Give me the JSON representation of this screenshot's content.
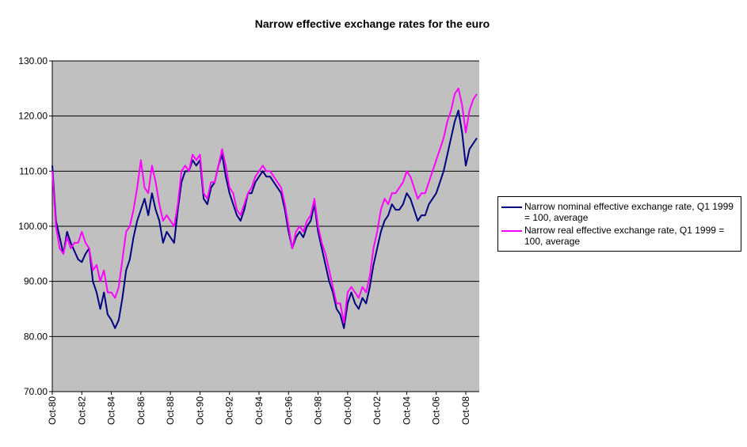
{
  "chart_data": {
    "type": "line",
    "title": "Narrow effective exchange rates for the euro",
    "categories": [
      "Oct-80",
      null,
      null,
      null,
      null,
      null,
      null,
      null,
      "Oct-82",
      null,
      null,
      null,
      null,
      null,
      null,
      null,
      "Oct-84",
      null,
      null,
      null,
      null,
      null,
      null,
      null,
      "Oct-86",
      null,
      null,
      null,
      null,
      null,
      null,
      null,
      "Oct-88",
      null,
      null,
      null,
      null,
      null,
      null,
      null,
      "Oct-90",
      null,
      null,
      null,
      null,
      null,
      null,
      null,
      "Oct-92",
      null,
      null,
      null,
      null,
      null,
      null,
      null,
      "Oct-94",
      null,
      null,
      null,
      null,
      null,
      null,
      null,
      "Oct-96",
      null,
      null,
      null,
      null,
      null,
      null,
      null,
      "Oct-98",
      null,
      null,
      null,
      null,
      null,
      null,
      null,
      "Oct-00",
      null,
      null,
      null,
      null,
      null,
      null,
      null,
      "Oct-02",
      null,
      null,
      null,
      null,
      null,
      null,
      null,
      "Oct-04",
      null,
      null,
      null,
      null,
      null,
      null,
      null,
      "Oct-06",
      null,
      null,
      null,
      null,
      null,
      null,
      null,
      "Oct-08",
      null,
      null,
      null
    ],
    "series": [
      {
        "name": "Narrow nominal effective exchange rate, Q1 1999 = 100, average",
        "color": "#000080",
        "values": [
          111,
          101,
          98,
          95,
          99,
          97,
          95.5,
          94,
          93.5,
          95,
          96,
          90,
          88,
          85,
          88,
          84,
          83,
          81.5,
          83,
          87,
          92,
          94,
          98,
          101,
          103,
          105,
          102,
          106,
          103,
          101,
          97,
          99,
          98,
          97,
          103,
          108,
          110,
          110,
          112,
          111,
          112,
          105,
          104,
          107,
          108,
          111,
          113,
          109,
          106,
          104,
          102,
          101,
          103,
          106,
          106,
          108,
          109,
          110,
          109,
          109,
          108,
          107,
          106,
          103,
          99,
          96,
          98,
          99,
          98,
          100,
          101,
          104,
          99,
          96,
          93,
          90,
          88,
          85,
          84,
          81.5,
          86,
          88,
          86,
          85,
          87,
          86,
          89,
          93,
          96,
          99,
          101,
          102,
          104,
          103,
          103,
          104,
          106,
          105,
          103,
          101,
          102,
          102,
          104,
          105,
          106,
          108,
          110,
          113,
          116,
          119,
          121,
          117,
          111,
          114,
          115,
          116
        ]
      },
      {
        "name": "Narrow real effective exchange rate, Q1 1999 = 100, average",
        "color": "#FF00FF",
        "values": [
          110,
          100,
          96,
          95,
          98,
          96,
          97,
          97,
          99,
          97,
          96,
          92,
          93,
          90,
          92,
          88,
          88,
          87,
          89,
          94,
          99,
          100,
          103,
          107,
          112,
          107,
          106,
          111,
          108,
          104,
          101,
          102,
          101,
          100,
          104,
          110,
          111,
          110,
          113,
          112,
          113,
          106,
          105,
          108,
          108,
          111,
          114,
          111,
          107,
          106,
          103,
          102,
          104,
          106,
          107,
          109,
          110,
          111,
          110,
          110,
          109,
          108,
          107,
          104,
          100,
          96,
          99,
          100,
          99,
          101,
          102,
          105,
          100,
          97,
          95,
          92,
          89,
          86,
          86,
          82.5,
          88,
          89,
          88,
          87,
          89,
          88,
          91,
          96,
          99,
          103,
          105,
          104,
          106,
          106,
          107,
          108,
          110,
          109,
          107,
          105,
          106,
          106,
          108,
          110,
          112,
          114,
          116,
          119,
          121,
          124,
          125,
          122,
          117,
          121,
          123,
          124
        ]
      }
    ],
    "ylim": [
      70,
      130
    ],
    "yticks": [
      {
        "value": 70,
        "label": "70.00"
      },
      {
        "value": 80,
        "label": "80.00"
      },
      {
        "value": 90,
        "label": "90.00"
      },
      {
        "value": 100,
        "label": "100.00"
      },
      {
        "value": 110,
        "label": "110.00"
      },
      {
        "value": 120,
        "label": "120.00"
      },
      {
        "value": 130,
        "label": "130.00"
      }
    ],
    "grid": true,
    "legend": "right"
  }
}
